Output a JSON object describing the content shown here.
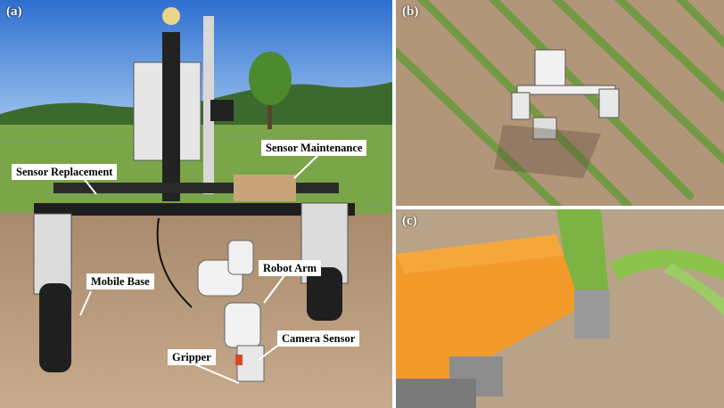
{
  "panels": {
    "a": {
      "label": "(a)"
    },
    "b": {
      "label": "(b)"
    },
    "c": {
      "label": "(c)"
    }
  },
  "callouts": {
    "sensor_replacement": "Sensor Replacement",
    "sensor_maintenance": "Sensor Maintenance",
    "mobile_base": "Mobile Base",
    "robot_arm": "Robot Arm",
    "camera_sensor": "Camera Sensor",
    "gripper": "Gripper"
  },
  "colors": {
    "sky": "#3f7fd6",
    "soil": "#b89a7a",
    "crop_green": "#6a9a3c",
    "gripper_orange": "#f29a2a",
    "robot_frame": "#1e1e1e"
  }
}
